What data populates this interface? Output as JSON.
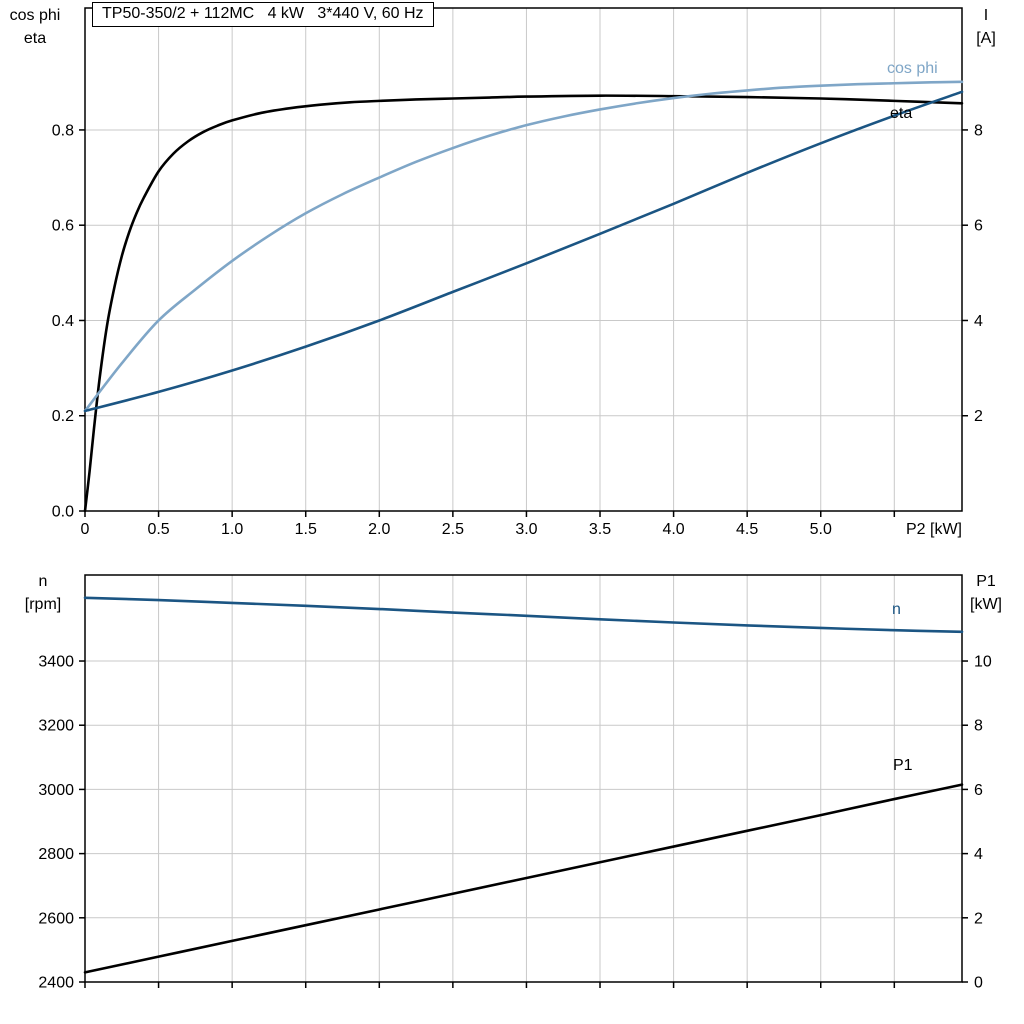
{
  "colors": {
    "black": "#000000",
    "light_blue": "#7fa6c7",
    "dark_blue": "#1b5583",
    "grid": "#c9c9c9",
    "frame": "#000000",
    "background": "#ffffff"
  },
  "top_chart": {
    "title": "TP50-350/2 + 112MC   4 kW   3*440 V, 60 Hz",
    "left_axis_title": "cos phi\neta",
    "right_axis_title": "I\n[A]",
    "x_axis_title": "P2 [kW]"
  },
  "bottom_chart": {
    "left_axis_title": "n\n[rpm]",
    "right_axis_title": "P1\n[kW]"
  },
  "chart_data": [
    {
      "type": "line",
      "title": "TP50-350/2 + 112MC   4 kW   3*440 V, 60 Hz",
      "grid": true,
      "legend_position": "inline-labels",
      "x_axis": {
        "label": "P2 [kW]",
        "min": 0,
        "max": 5.96,
        "tick_values": [
          0,
          0.5,
          1,
          1.5,
          2,
          2.5,
          3,
          3.5,
          4,
          4.5,
          5
        ],
        "tick_labels": [
          "0",
          "0.5",
          "1.0",
          "1.5",
          "2.0",
          "2.5",
          "3.0",
          "3.5",
          "4.0",
          "4.5",
          "5.0"
        ],
        "grid_values": [
          0.5,
          1,
          1.5,
          2,
          2.5,
          3,
          3.5,
          4,
          4.5,
          5,
          5.5
        ]
      },
      "y_left": {
        "label": "cos phi / eta",
        "min": 0,
        "max": 1.056,
        "tick_values": [
          0,
          0.2,
          0.4,
          0.6,
          0.8
        ],
        "tick_labels": [
          "0.0",
          "0.2",
          "0.4",
          "0.6",
          "0.8"
        ]
      },
      "y_right": {
        "label": "I [A]",
        "min": 0,
        "max": 10.56,
        "tick_values": [
          2,
          4,
          6,
          8
        ],
        "tick_labels": [
          "2",
          "4",
          "6",
          "8"
        ]
      },
      "series": [
        {
          "name": "eta",
          "label": "eta",
          "axis": "left",
          "color": "#000000",
          "points": [
            [
              0,
              0
            ],
            [
              0.03,
              0.08
            ],
            [
              0.06,
              0.17
            ],
            [
              0.1,
              0.28
            ],
            [
              0.15,
              0.39
            ],
            [
              0.2,
              0.47
            ],
            [
              0.25,
              0.535
            ],
            [
              0.3,
              0.585
            ],
            [
              0.35,
              0.625
            ],
            [
              0.4,
              0.658
            ],
            [
              0.5,
              0.713
            ],
            [
              0.6,
              0.75
            ],
            [
              0.7,
              0.776
            ],
            [
              0.8,
              0.795
            ],
            [
              0.9,
              0.809
            ],
            [
              1,
              0.82
            ],
            [
              1.2,
              0.836
            ],
            [
              1.4,
              0.846
            ],
            [
              1.6,
              0.853
            ],
            [
              1.8,
              0.858
            ],
            [
              2,
              0.861
            ],
            [
              2.25,
              0.864
            ],
            [
              2.5,
              0.866
            ],
            [
              2.75,
              0.868
            ],
            [
              3,
              0.87
            ],
            [
              3.5,
              0.872
            ],
            [
              4,
              0.871
            ],
            [
              4.5,
              0.869
            ],
            [
              5,
              0.866
            ],
            [
              5.5,
              0.861
            ],
            [
              5.96,
              0.856
            ]
          ]
        },
        {
          "name": "cos_phi",
          "label": "cos phi",
          "axis": "left",
          "color": "#7fa6c7",
          "points": [
            [
              0,
              0.21
            ],
            [
              0.25,
              0.31
            ],
            [
              0.5,
              0.4
            ],
            [
              0.75,
              0.465
            ],
            [
              1,
              0.525
            ],
            [
              1.25,
              0.578
            ],
            [
              1.5,
              0.625
            ],
            [
              1.75,
              0.665
            ],
            [
              2,
              0.7
            ],
            [
              2.25,
              0.733
            ],
            [
              2.5,
              0.762
            ],
            [
              2.75,
              0.788
            ],
            [
              3,
              0.81
            ],
            [
              3.25,
              0.828
            ],
            [
              3.5,
              0.843
            ],
            [
              3.75,
              0.856
            ],
            [
              4,
              0.867
            ],
            [
              4.25,
              0.876
            ],
            [
              4.5,
              0.883
            ],
            [
              4.75,
              0.889
            ],
            [
              5,
              0.893
            ],
            [
              5.25,
              0.896
            ],
            [
              5.5,
              0.898
            ],
            [
              5.75,
              0.9
            ],
            [
              5.96,
              0.901
            ]
          ]
        },
        {
          "name": "I",
          "label": "I",
          "axis": "right",
          "color": "#1b5583",
          "points": [
            [
              0,
              2.1
            ],
            [
              0.5,
              2.5
            ],
            [
              1,
              2.95
            ],
            [
              1.5,
              3.45
            ],
            [
              2,
              4
            ],
            [
              2.5,
              4.6
            ],
            [
              3,
              5.2
            ],
            [
              3.5,
              5.82
            ],
            [
              4,
              6.45
            ],
            [
              4.5,
              7.1
            ],
            [
              5,
              7.72
            ],
            [
              5.5,
              8.3
            ],
            [
              5.96,
              8.8
            ]
          ]
        }
      ]
    },
    {
      "type": "line",
      "title": "",
      "grid": true,
      "legend_position": "inline-labels",
      "x_axis": {
        "label": "",
        "min": 0,
        "max": 5.96,
        "tick_values": [],
        "tick_labels": [],
        "grid_values": [
          0.5,
          1,
          1.5,
          2,
          2.5,
          3,
          3.5,
          4,
          4.5,
          5,
          5.5
        ]
      },
      "y_left": {
        "label": "n [rpm]",
        "min": 2400,
        "max": 3668,
        "tick_values": [
          2400,
          2600,
          2800,
          3000,
          3200,
          3400
        ],
        "tick_labels": [
          "2400",
          "2600",
          "2800",
          "3000",
          "3200",
          "3400"
        ]
      },
      "y_right": {
        "label": "P1 [kW]",
        "min": 0,
        "max": 12.68,
        "tick_values": [
          0,
          2,
          4,
          6,
          8,
          10
        ],
        "tick_labels": [
          "0",
          "2",
          "4",
          "6",
          "8",
          "10"
        ]
      },
      "series": [
        {
          "name": "n",
          "label": "n",
          "axis": "left",
          "color": "#1b5583",
          "points": [
            [
              0,
              3597
            ],
            [
              0.5,
              3590
            ],
            [
              1,
              3581
            ],
            [
              1.5,
              3572
            ],
            [
              2,
              3562
            ],
            [
              2.5,
              3551
            ],
            [
              3,
              3541
            ],
            [
              3.5,
              3530
            ],
            [
              4,
              3520
            ],
            [
              4.5,
              3511
            ],
            [
              5,
              3503
            ],
            [
              5.5,
              3496
            ],
            [
              5.96,
              3491
            ]
          ]
        },
        {
          "name": "P1",
          "label": "P1",
          "axis": "right",
          "color": "#000000",
          "points": [
            [
              0,
              0.3
            ],
            [
              0.5,
              0.79
            ],
            [
              1,
              1.28
            ],
            [
              1.5,
              1.77
            ],
            [
              2,
              2.26
            ],
            [
              2.5,
              2.75
            ],
            [
              3,
              3.24
            ],
            [
              3.5,
              3.73
            ],
            [
              4,
              4.22
            ],
            [
              4.5,
              4.71
            ],
            [
              5,
              5.2
            ],
            [
              5.5,
              5.7
            ],
            [
              5.96,
              6.15
            ]
          ]
        }
      ]
    }
  ]
}
